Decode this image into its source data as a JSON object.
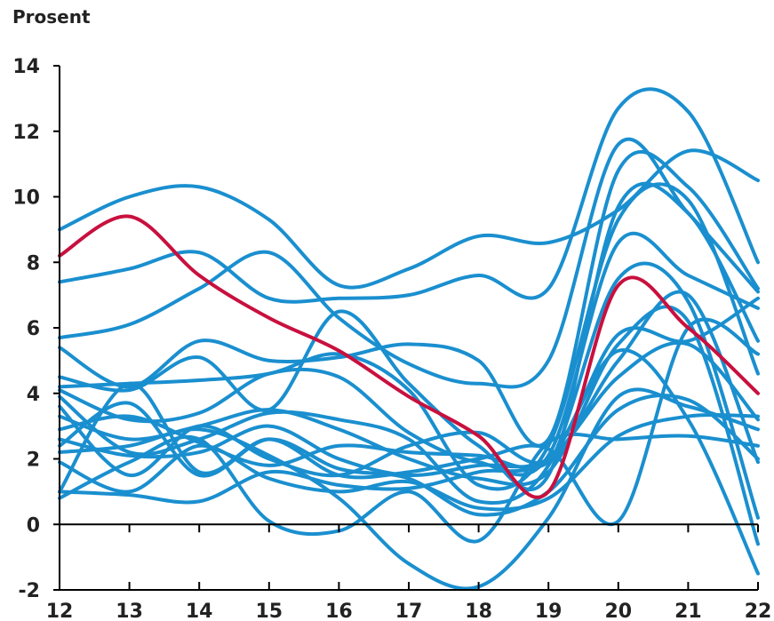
{
  "chart_data": {
    "type": "line",
    "unit_label": "Prosent",
    "title": "",
    "xlabel": "",
    "ylabel": "Prosent",
    "x": [
      12,
      13,
      14,
      15,
      16,
      17,
      18,
      19,
      20,
      21,
      22
    ],
    "x_tick_labels": [
      "12",
      "13",
      "14",
      "15",
      "16",
      "17",
      "18",
      "19",
      "20",
      "21",
      "22"
    ],
    "ylim": [
      -2,
      14
    ],
    "y_ticks": [
      -2,
      0,
      2,
      4,
      6,
      8,
      10,
      12,
      14
    ],
    "y_tick_labels": [
      "-2",
      "0",
      "2",
      "4",
      "6",
      "8",
      "10",
      "12",
      "14"
    ],
    "grid": false,
    "legend": "none",
    "highlight_color": "#c8103e",
    "series_color": "#1a8fcf",
    "series": [
      {
        "values": [
          9.0,
          10.0,
          10.3,
          9.3,
          7.3,
          7.8,
          8.8,
          8.6,
          9.6,
          11.4,
          10.5
        ]
      },
      {
        "values": [
          7.4,
          7.8,
          8.3,
          6.9,
          6.9,
          7.0,
          7.6,
          7.2,
          12.7,
          12.6,
          8.0
        ]
      },
      {
        "values": [
          5.7,
          6.1,
          7.2,
          8.3,
          6.3,
          4.9,
          4.3,
          5.0,
          11.6,
          9.5,
          7.1
        ]
      },
      {
        "values": [
          5.4,
          4.2,
          5.6,
          5.0,
          5.1,
          5.5,
          5.0,
          2.6,
          10.8,
          10.3,
          7.2
        ]
      },
      {
        "values": [
          4.5,
          4.1,
          5.1,
          3.5,
          6.5,
          4.3,
          2.4,
          1.5,
          9.7,
          9.5,
          5.6
        ]
      },
      {
        "values": [
          4.2,
          4.3,
          4.4,
          4.6,
          5.2,
          4.1,
          1.2,
          2.4,
          9.3,
          9.9,
          4.6
        ]
      },
      {
        "values": [
          4.1,
          3.2,
          3.4,
          4.6,
          4.5,
          2.8,
          1.9,
          2.1,
          8.6,
          7.6,
          6.6
        ]
      },
      {
        "values": [
          3.9,
          2.2,
          2.6,
          3.4,
          3.2,
          2.6,
          0.7,
          1.8,
          7.5,
          6.8,
          0.2
        ]
      },
      {
        "values": [
          3.6,
          1.5,
          3.0,
          2.0,
          1.5,
          2.4,
          2.8,
          2.0,
          5.8,
          5.6,
          6.9
        ]
      },
      {
        "values": [
          3.3,
          2.6,
          3.0,
          3.5,
          2.9,
          2.0,
          1.4,
          1.6,
          5.5,
          6.2,
          -0.6
        ]
      },
      {
        "values": [
          2.9,
          3.3,
          2.5,
          1.8,
          2.4,
          2.2,
          2.1,
          1.9,
          5.0,
          7.0,
          1.9
        ]
      },
      {
        "values": [
          2.6,
          2.1,
          2.2,
          3.0,
          2.0,
          1.5,
          1.8,
          2.0,
          4.5,
          5.5,
          3.2
        ]
      },
      {
        "values": [
          2.4,
          3.7,
          1.5,
          2.6,
          1.7,
          1.4,
          0.3,
          1.0,
          3.5,
          3.8,
          2.0
        ]
      },
      {
        "values": [
          2.2,
          2.4,
          2.9,
          2.1,
          0.8,
          -1.2,
          -1.9,
          0.2,
          3.9,
          3.6,
          2.9
        ]
      },
      {
        "values": [
          1.9,
          1.0,
          2.4,
          1.4,
          1.0,
          1.3,
          0.5,
          0.8,
          2.7,
          3.3,
          3.3
        ]
      },
      {
        "values": [
          1.0,
          4.3,
          1.6,
          2.6,
          1.5,
          1.6,
          2.0,
          2.3,
          0.1,
          6.0,
          5.2
        ]
      },
      {
        "values": [
          0.8,
          1.9,
          2.6,
          0.1,
          -0.2,
          1.0,
          -0.5,
          2.5,
          2.6,
          2.7,
          2.4
        ]
      },
      {
        "values": [
          1.0,
          0.9,
          0.7,
          1.6,
          1.2,
          1.1,
          1.6,
          2.0,
          5.3,
          3.2,
          -1.5
        ]
      },
      {
        "values": [
          8.2,
          9.4,
          7.6,
          6.3,
          5.3,
          3.9,
          2.7,
          1.0,
          7.3,
          6.0,
          4.0
        ],
        "highlight": true
      }
    ]
  }
}
